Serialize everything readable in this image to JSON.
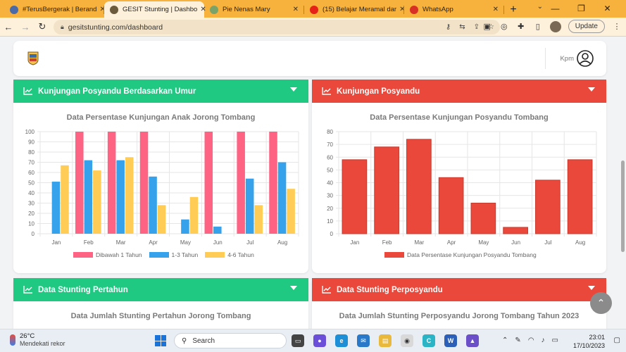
{
  "browser": {
    "tabs": [
      {
        "title": "#TerusBergerak | Berand",
        "favicon": "globe-icon",
        "color": "#4b6aa8"
      },
      {
        "title": "GESIT Stunting | Dashbo",
        "favicon": "crest-icon",
        "color": "#6b5a3b",
        "active": true
      },
      {
        "title": "Pie Nenas Mary",
        "favicon": "globe-icon",
        "color": "#7aa36a"
      },
      {
        "title": "(15) Belajar Meramal dar",
        "favicon": "youtube-icon",
        "color": "#e62117"
      },
      {
        "title": "WhatsApp",
        "favicon": "alert-icon",
        "color": "#d93025"
      }
    ],
    "new_tab": "+",
    "url": "gesitstunting.com/dashboard",
    "update_label": "Update"
  },
  "header": {
    "user_label": "Kpm"
  },
  "panels": {
    "umur": {
      "title": "Kunjungan Posyandu Berdasarkan Umur",
      "chart_title": "Data Persentase Kunjungan Anak Jorong Tombang",
      "color": "#1fc982"
    },
    "posyandu": {
      "title": "Kunjungan Posyandu",
      "chart_title": "Data Persentase Kunjungan Posyandu Tombang",
      "color": "#e9483b"
    },
    "pertahun": {
      "title": "Data Stunting Pertahun",
      "chart_title": "Data Jumlah Stunting Pertahun Jorong Tombang",
      "color": "#1fc982"
    },
    "perposyandu": {
      "title": "Data Stunting Perposyandu",
      "chart_title": "Data Jumlah Stunting Perposyandu Jorong Tombang Tahun 2023",
      "color": "#e9483b"
    }
  },
  "chart_data": [
    {
      "type": "bar",
      "title": "Data Persentase Kunjungan Anak Jorong Tombang",
      "categories": [
        "Jan",
        "Feb",
        "Mar",
        "Apr",
        "May",
        "Jun",
        "Jul",
        "Aug"
      ],
      "ylim": [
        0,
        100
      ],
      "yticks": [
        0,
        10,
        20,
        30,
        40,
        50,
        60,
        70,
        80,
        90,
        100
      ],
      "series": [
        {
          "name": "Dibawah 1 Tahun",
          "color": "#ff6384",
          "values": [
            0,
            100,
            100,
            100,
            0,
            100,
            100,
            100
          ]
        },
        {
          "name": "1-3 Tahun",
          "color": "#36a2eb",
          "values": [
            51,
            72,
            72,
            56,
            14,
            7,
            54,
            70
          ]
        },
        {
          "name": "4-6 Tahun",
          "color": "#ffcd56",
          "values": [
            67,
            62,
            75,
            28,
            36,
            0,
            28,
            44
          ]
        }
      ],
      "legend": "bottom",
      "grid": true
    },
    {
      "type": "bar",
      "title": "Data Persentase Kunjungan Posyandu Tombang",
      "categories": [
        "Jan",
        "Feb",
        "Mar",
        "Apr",
        "May",
        "Jun",
        "Jul",
        "Aug"
      ],
      "ylim": [
        0,
        80
      ],
      "yticks": [
        0,
        10,
        20,
        30,
        40,
        50,
        60,
        70,
        80
      ],
      "series": [
        {
          "name": "Data Persentase Kunjungan Posyandu Tombang",
          "color": "#e9483b",
          "values": [
            58,
            68,
            74,
            44,
            24,
            5,
            42,
            58
          ]
        }
      ],
      "legend": "bottom",
      "grid": true
    }
  ],
  "taskbar": {
    "temperature": "26°C",
    "weather_desc": "Mendekati rekor",
    "search_placeholder": "Search",
    "time": "23:01",
    "date": "17/10/2023"
  }
}
